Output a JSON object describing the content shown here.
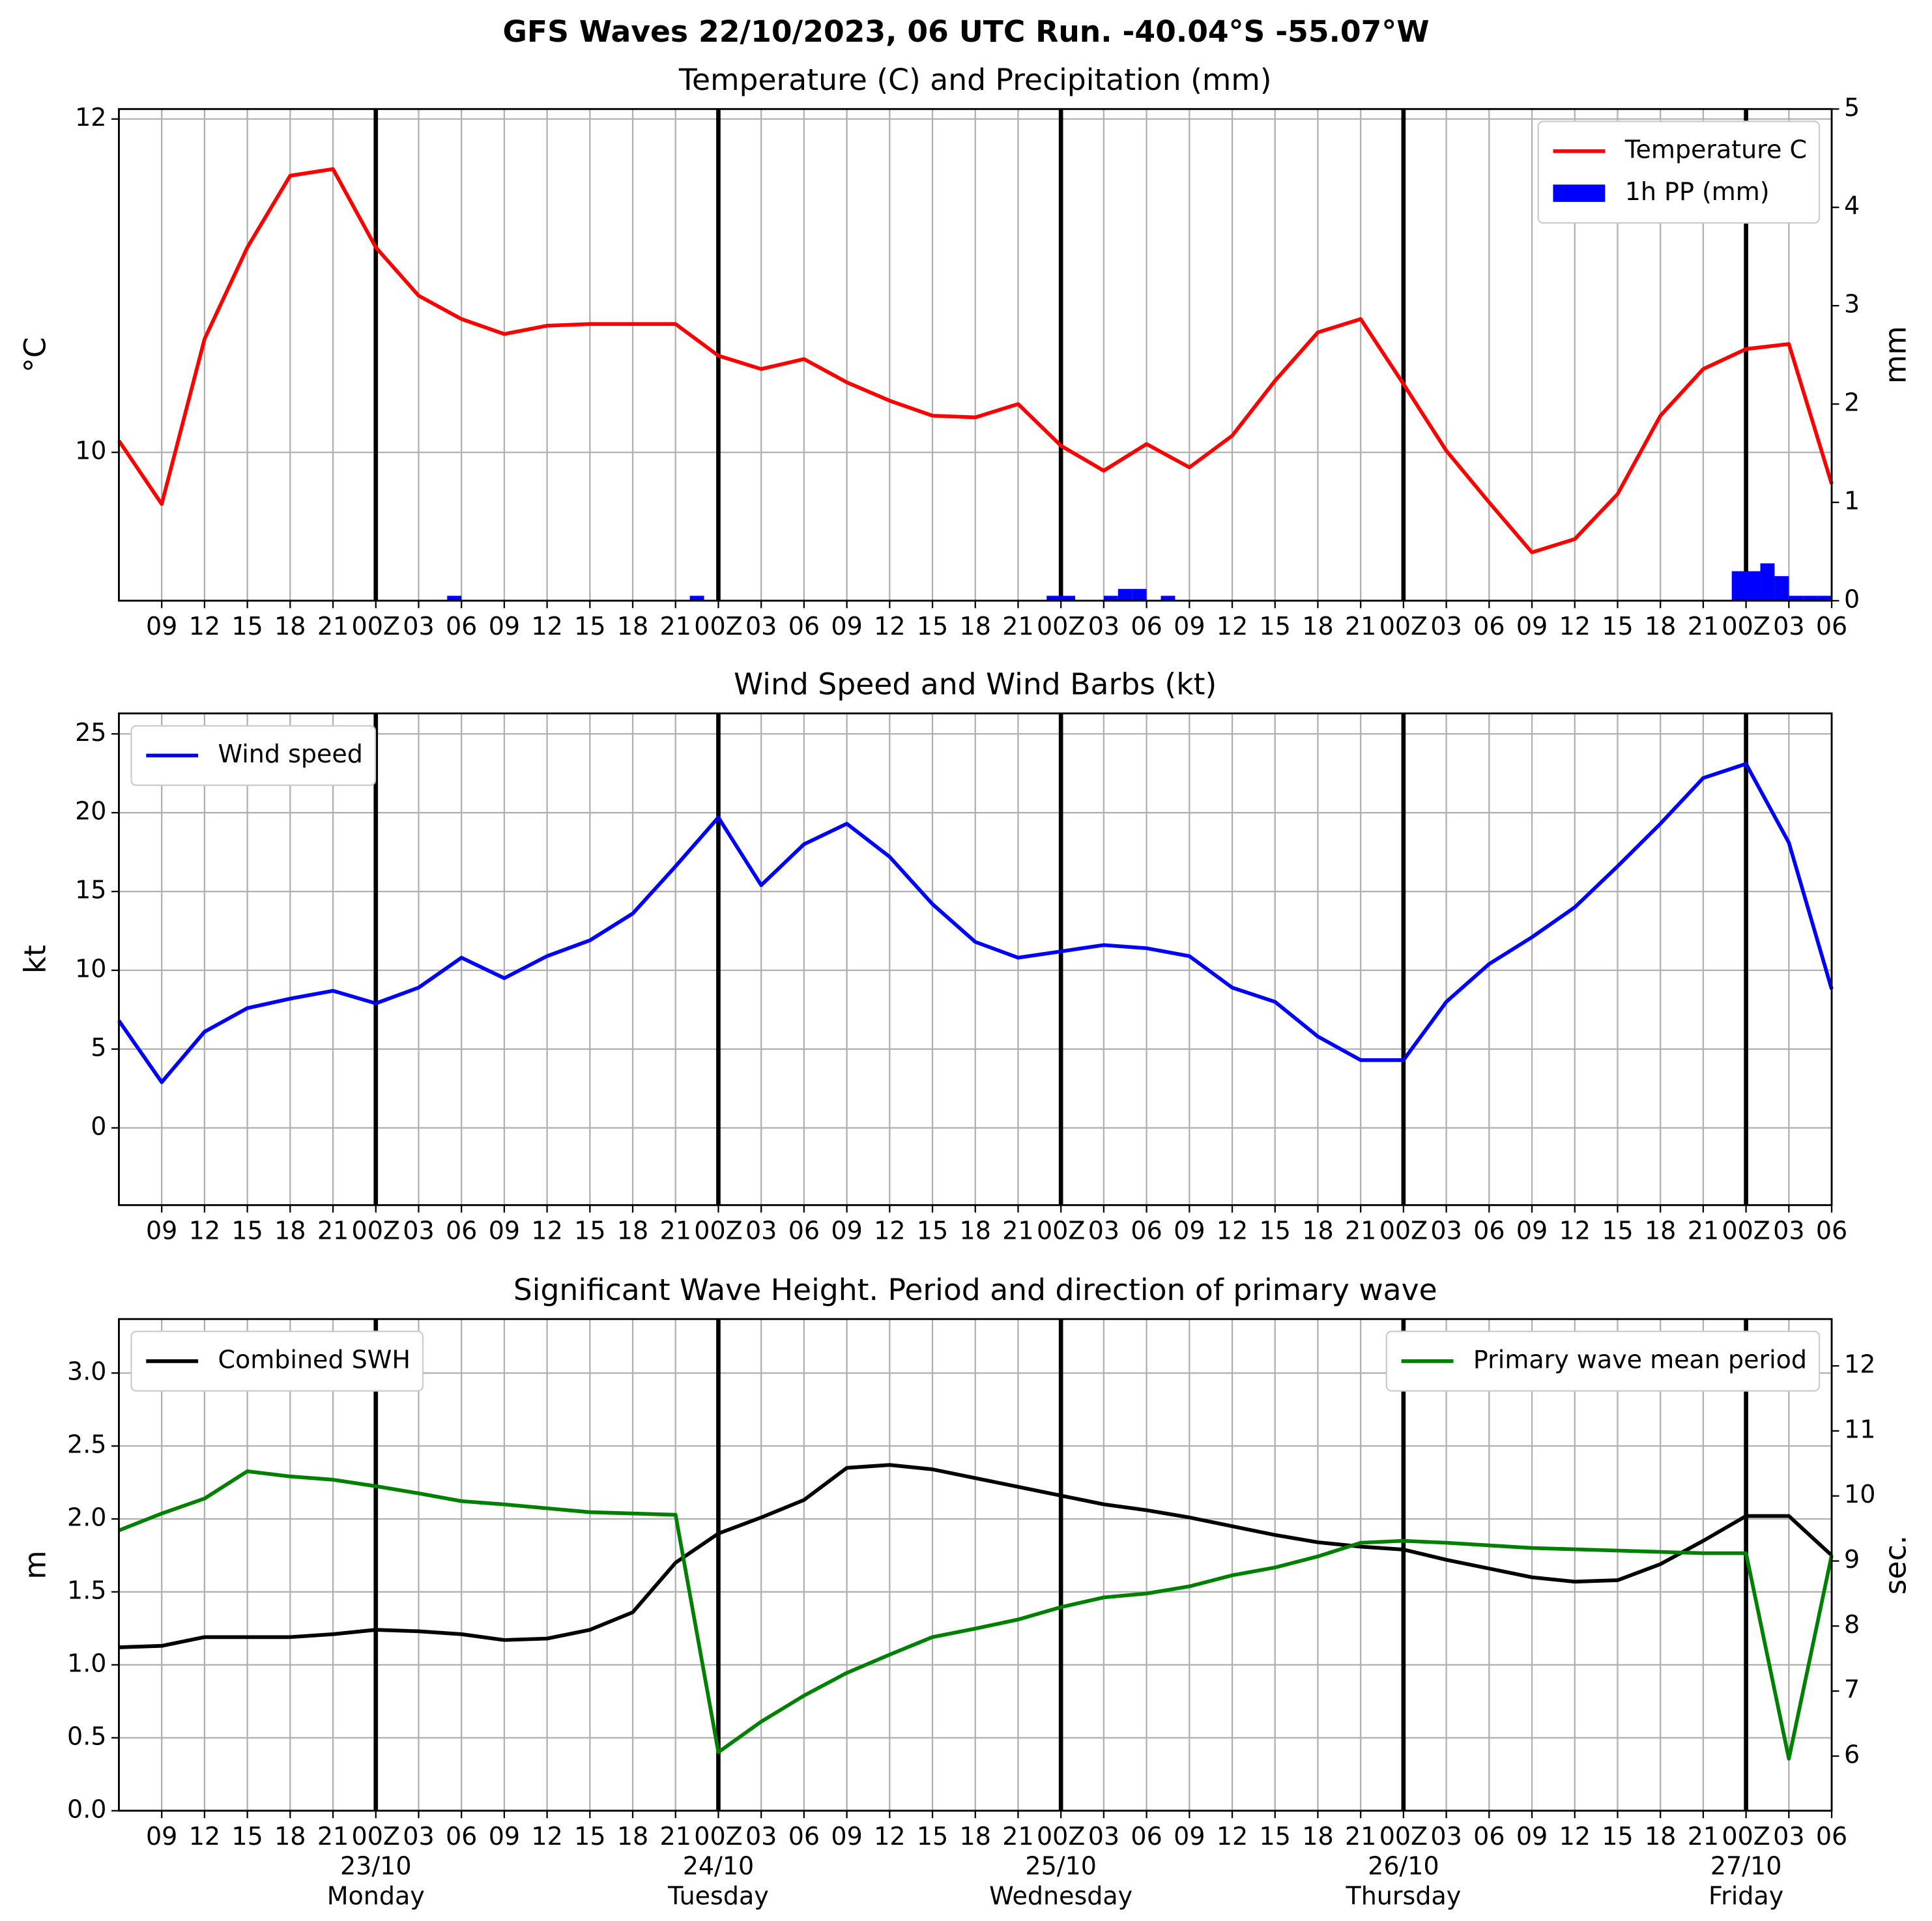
{
  "title": "GFS Waves 22/10/2023, 06 UTC Run. -40.04°S -55.07°W",
  "chart_data": [
    {
      "type": "line",
      "title": "Temperature (C) and Precipitation (mm)",
      "ylabel": "$^\\circ$C",
      "y2label": "mm",
      "legend": "upper right",
      "grid": true,
      "xlim": [
        0,
        120
      ],
      "ylim": [
        9.11,
        12.06
      ],
      "yticks": [
        10,
        12
      ],
      "y2lim": [
        0,
        5
      ],
      "y2ticks": [
        0,
        1,
        2,
        3,
        4,
        5
      ],
      "xticks": [
        {
          "value": 3,
          "label": "09"
        },
        {
          "value": 6,
          "label": "12"
        },
        {
          "value": 9,
          "label": "15"
        },
        {
          "value": 12,
          "label": "18"
        },
        {
          "value": 15,
          "label": "21"
        },
        {
          "value": 18,
          "label": "00Z"
        },
        {
          "value": 21,
          "label": "03"
        },
        {
          "value": 24,
          "label": "06"
        },
        {
          "value": 27,
          "label": "09"
        },
        {
          "value": 30,
          "label": "12"
        },
        {
          "value": 33,
          "label": "15"
        },
        {
          "value": 36,
          "label": "18"
        },
        {
          "value": 39,
          "label": "21"
        },
        {
          "value": 42,
          "label": "00Z"
        },
        {
          "value": 45,
          "label": "03"
        },
        {
          "value": 48,
          "label": "06"
        },
        {
          "value": 51,
          "label": "09"
        },
        {
          "value": 54,
          "label": "12"
        },
        {
          "value": 57,
          "label": "15"
        },
        {
          "value": 60,
          "label": "18"
        },
        {
          "value": 63,
          "label": "21"
        },
        {
          "value": 66,
          "label": "00Z"
        },
        {
          "value": 69,
          "label": "03"
        },
        {
          "value": 72,
          "label": "06"
        },
        {
          "value": 75,
          "label": "09"
        },
        {
          "value": 78,
          "label": "12"
        },
        {
          "value": 81,
          "label": "15"
        },
        {
          "value": 84,
          "label": "18"
        },
        {
          "value": 87,
          "label": "21"
        },
        {
          "value": 90,
          "label": "00Z"
        },
        {
          "value": 93,
          "label": "03"
        },
        {
          "value": 96,
          "label": "06"
        },
        {
          "value": 99,
          "label": "09"
        },
        {
          "value": 102,
          "label": "12"
        },
        {
          "value": 105,
          "label": "15"
        },
        {
          "value": 108,
          "label": "18"
        },
        {
          "value": 111,
          "label": "21"
        },
        {
          "value": 114,
          "label": "00Z"
        },
        {
          "value": 117,
          "label": "03"
        },
        {
          "value": 120,
          "label": "06"
        }
      ],
      "day_lines": [
        18,
        42,
        66,
        90,
        114
      ],
      "series": [
        {
          "name": "Temperature C",
          "type": "line",
          "color": "red",
          "x": [
            0,
            3,
            6,
            9,
            12,
            15,
            18,
            21,
            24,
            27,
            30,
            33,
            36,
            39,
            42,
            45,
            48,
            51,
            54,
            57,
            60,
            63,
            66,
            69,
            72,
            75,
            78,
            81,
            84,
            87,
            90,
            93,
            96,
            99,
            102,
            105,
            108,
            111,
            114,
            117,
            120
          ],
          "values": [
            10.07,
            9.69,
            10.68,
            11.23,
            11.66,
            11.7,
            11.23,
            10.94,
            10.8,
            10.71,
            10.76,
            10.77,
            10.77,
            10.77,
            10.58,
            10.5,
            10.56,
            10.42,
            10.31,
            10.22,
            10.21,
            10.29,
            10.04,
            9.89,
            10.05,
            9.91,
            10.1,
            10.43,
            10.72,
            10.8,
            10.41,
            10.01,
            9.7,
            9.4,
            9.48,
            9.75,
            10.22,
            10.5,
            10.62,
            10.65,
            9.81
          ]
        },
        {
          "name": "1h PP (mm)",
          "type": "bar",
          "color": "blue",
          "axis": "y2",
          "x": [
            23,
            40,
            65,
            66,
            69,
            70,
            71,
            73,
            113,
            114,
            115,
            116,
            117,
            118,
            119
          ],
          "values": [
            0.05,
            0.05,
            0.05,
            0.05,
            0.05,
            0.12,
            0.12,
            0.05,
            0.3,
            0.3,
            0.38,
            0.25,
            0.05,
            0.05,
            0.05
          ]
        }
      ]
    },
    {
      "type": "line",
      "title": "Wind Speed and Wind Barbs (kt)",
      "ylabel": "kt",
      "legend": "upper left",
      "grid": true,
      "xlim": [
        0,
        120
      ],
      "ylim": [
        -4.9,
        26.3
      ],
      "yticks": [
        0,
        5,
        10,
        15,
        20,
        25
      ],
      "xticks": [
        {
          "value": 3,
          "label": "09"
        },
        {
          "value": 6,
          "label": "12"
        },
        {
          "value": 9,
          "label": "15"
        },
        {
          "value": 12,
          "label": "18"
        },
        {
          "value": 15,
          "label": "21"
        },
        {
          "value": 18,
          "label": "00Z"
        },
        {
          "value": 21,
          "label": "03"
        },
        {
          "value": 24,
          "label": "06"
        },
        {
          "value": 27,
          "label": "09"
        },
        {
          "value": 30,
          "label": "12"
        },
        {
          "value": 33,
          "label": "15"
        },
        {
          "value": 36,
          "label": "18"
        },
        {
          "value": 39,
          "label": "21"
        },
        {
          "value": 42,
          "label": "00Z"
        },
        {
          "value": 45,
          "label": "03"
        },
        {
          "value": 48,
          "label": "06"
        },
        {
          "value": 51,
          "label": "09"
        },
        {
          "value": 54,
          "label": "12"
        },
        {
          "value": 57,
          "label": "15"
        },
        {
          "value": 60,
          "label": "18"
        },
        {
          "value": 63,
          "label": "21"
        },
        {
          "value": 66,
          "label": "00Z"
        },
        {
          "value": 69,
          "label": "03"
        },
        {
          "value": 72,
          "label": "06"
        },
        {
          "value": 75,
          "label": "09"
        },
        {
          "value": 78,
          "label": "12"
        },
        {
          "value": 81,
          "label": "15"
        },
        {
          "value": 84,
          "label": "18"
        },
        {
          "value": 87,
          "label": "21"
        },
        {
          "value": 90,
          "label": "00Z"
        },
        {
          "value": 93,
          "label": "03"
        },
        {
          "value": 96,
          "label": "06"
        },
        {
          "value": 99,
          "label": "09"
        },
        {
          "value": 102,
          "label": "12"
        },
        {
          "value": 105,
          "label": "15"
        },
        {
          "value": 108,
          "label": "18"
        },
        {
          "value": 111,
          "label": "21"
        },
        {
          "value": 114,
          "label": "00Z"
        },
        {
          "value": 117,
          "label": "03"
        },
        {
          "value": 120,
          "label": "06"
        }
      ],
      "day_lines": [
        18,
        42,
        66,
        90,
        114
      ],
      "series": [
        {
          "name": "Wind speed",
          "type": "line",
          "color": "blue",
          "x": [
            0,
            3,
            6,
            9,
            12,
            15,
            18,
            21,
            24,
            27,
            30,
            33,
            36,
            39,
            42,
            45,
            48,
            51,
            54,
            57,
            60,
            63,
            66,
            69,
            72,
            75,
            78,
            81,
            84,
            87,
            90,
            93,
            96,
            99,
            102,
            105,
            108,
            111,
            114,
            117,
            120
          ],
          "values": [
            6.8,
            2.9,
            6.1,
            7.6,
            8.2,
            8.7,
            7.9,
            8.9,
            10.8,
            9.5,
            10.9,
            11.9,
            13.6,
            16.6,
            19.7,
            15.4,
            18.0,
            19.3,
            17.2,
            14.2,
            11.8,
            10.8,
            11.2,
            11.6,
            11.4,
            10.9,
            8.9,
            8.0,
            5.8,
            4.3,
            4.3,
            8.0,
            10.4,
            12.1,
            14.0,
            16.6,
            19.3,
            22.2,
            23.1,
            18.1,
            8.8
          ]
        }
      ]
    },
    {
      "type": "line",
      "title": "Significant Wave Height. Period and direction of primary wave",
      "ylabel": "m",
      "y2label": "sec.",
      "grid": true,
      "xlim": [
        0,
        120
      ],
      "ylim": [
        0,
        3.37
      ],
      "yticks": [
        {
          "value": 0,
          "label": "0.0"
        },
        {
          "value": 0.5,
          "label": "0.5"
        },
        {
          "value": 1,
          "label": "1.0"
        },
        {
          "value": 1.5,
          "label": "1.5"
        },
        {
          "value": 2,
          "label": "2.0"
        },
        {
          "value": 2.5,
          "label": "2.5"
        },
        {
          "value": 3,
          "label": "3.0"
        }
      ],
      "y2lim": [
        5.16,
        12.72
      ],
      "y2ticks": [
        6,
        7,
        8,
        9,
        10,
        11,
        12
      ],
      "xticks": [
        {
          "value": 3,
          "label": "09"
        },
        {
          "value": 6,
          "label": "12"
        },
        {
          "value": 9,
          "label": "15"
        },
        {
          "value": 12,
          "label": "18"
        },
        {
          "value": 15,
          "label": "21"
        },
        {
          "value": 18,
          "label": "00Z"
        },
        {
          "value": 21,
          "label": "03"
        },
        {
          "value": 24,
          "label": "06"
        },
        {
          "value": 27,
          "label": "09"
        },
        {
          "value": 30,
          "label": "12"
        },
        {
          "value": 33,
          "label": "15"
        },
        {
          "value": 36,
          "label": "18"
        },
        {
          "value": 39,
          "label": "21"
        },
        {
          "value": 42,
          "label": "00Z"
        },
        {
          "value": 45,
          "label": "03"
        },
        {
          "value": 48,
          "label": "06"
        },
        {
          "value": 51,
          "label": "09"
        },
        {
          "value": 54,
          "label": "12"
        },
        {
          "value": 57,
          "label": "15"
        },
        {
          "value": 60,
          "label": "18"
        },
        {
          "value": 63,
          "label": "21"
        },
        {
          "value": 66,
          "label": "00Z"
        },
        {
          "value": 69,
          "label": "03"
        },
        {
          "value": 72,
          "label": "06"
        },
        {
          "value": 75,
          "label": "09"
        },
        {
          "value": 78,
          "label": "12"
        },
        {
          "value": 81,
          "label": "15"
        },
        {
          "value": 84,
          "label": "18"
        },
        {
          "value": 87,
          "label": "21"
        },
        {
          "value": 90,
          "label": "00Z"
        },
        {
          "value": 93,
          "label": "03"
        },
        {
          "value": 96,
          "label": "06"
        },
        {
          "value": 99,
          "label": "09"
        },
        {
          "value": 102,
          "label": "12"
        },
        {
          "value": 105,
          "label": "15"
        },
        {
          "value": 108,
          "label": "18"
        },
        {
          "value": 111,
          "label": "21"
        },
        {
          "value": 114,
          "label": "00Z"
        },
        {
          "value": 117,
          "label": "03"
        },
        {
          "value": 120,
          "label": "06"
        }
      ],
      "day_lines": [
        18,
        42,
        66,
        90,
        114
      ],
      "day_labels": [
        {
          "value": 18,
          "date": "23/10",
          "weekday": "Monday"
        },
        {
          "value": 42,
          "date": "24/10",
          "weekday": "Tuesday"
        },
        {
          "value": 66,
          "date": "25/10",
          "weekday": "Wednesday"
        },
        {
          "value": 90,
          "date": "26/10",
          "weekday": "Thursday"
        },
        {
          "value": 114,
          "date": "27/10",
          "weekday": "Friday"
        }
      ],
      "series": [
        {
          "name": "Combined SWH",
          "type": "line",
          "color": "black",
          "legend": "upper left",
          "x": [
            0,
            3,
            6,
            9,
            12,
            15,
            18,
            21,
            24,
            27,
            30,
            33,
            36,
            39,
            42,
            45,
            48,
            51,
            54,
            57,
            60,
            63,
            66,
            69,
            72,
            75,
            78,
            81,
            84,
            87,
            90,
            93,
            96,
            99,
            102,
            105,
            108,
            111,
            114,
            117,
            120
          ],
          "values": [
            1.12,
            1.13,
            1.19,
            1.19,
            1.19,
            1.21,
            1.24,
            1.23,
            1.21,
            1.17,
            1.18,
            1.24,
            1.36,
            1.7,
            1.9,
            2.01,
            2.13,
            2.35,
            2.37,
            2.34,
            2.28,
            2.22,
            2.16,
            2.1,
            2.06,
            2.01,
            1.95,
            1.89,
            1.84,
            1.81,
            1.79,
            1.72,
            1.66,
            1.6,
            1.57,
            1.58,
            1.69,
            1.85,
            2.02,
            2.02,
            1.75
          ]
        },
        {
          "name": "Primary wave mean period",
          "type": "line",
          "color": "green",
          "axis": "y2",
          "legend": "upper right",
          "x": [
            0,
            3,
            6,
            9,
            12,
            15,
            18,
            21,
            24,
            27,
            30,
            33,
            36,
            39,
            42,
            45,
            48,
            51,
            54,
            57,
            60,
            63,
            66,
            69,
            72,
            75,
            78,
            81,
            84,
            87,
            90,
            93,
            96,
            99,
            102,
            105,
            108,
            111,
            114,
            117,
            120
          ],
          "values": [
            9.47,
            9.73,
            9.96,
            10.38,
            10.3,
            10.25,
            10.15,
            10.04,
            9.92,
            9.87,
            9.81,
            9.75,
            9.73,
            9.71,
            6.06,
            6.53,
            6.93,
            7.28,
            7.56,
            7.83,
            7.96,
            8.1,
            8.29,
            8.44,
            8.5,
            8.61,
            8.78,
            8.9,
            9.07,
            9.28,
            9.31,
            9.28,
            9.24,
            9.2,
            9.18,
            9.16,
            9.14,
            9.12,
            9.12,
            5.96,
            9.09
          ]
        }
      ]
    }
  ]
}
